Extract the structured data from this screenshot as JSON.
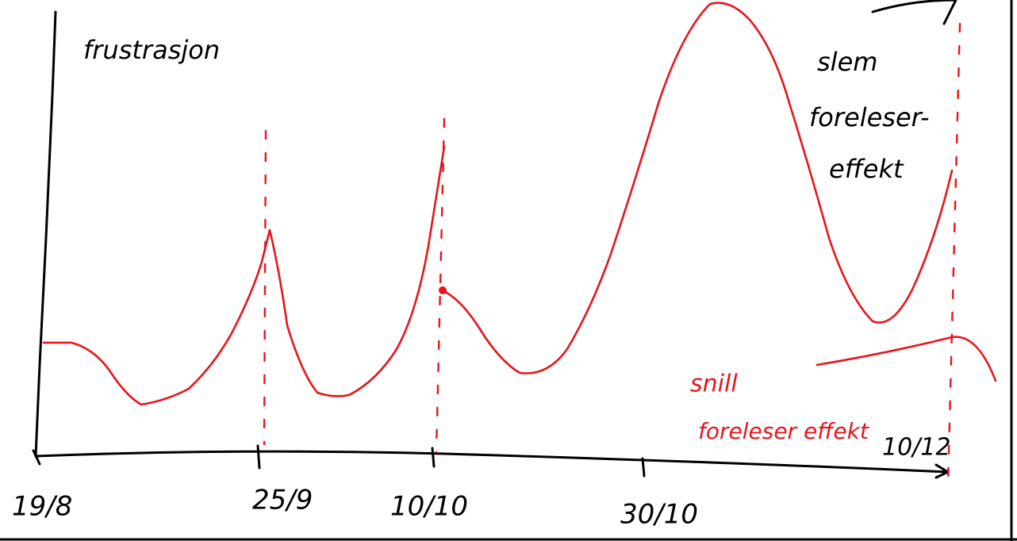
{
  "y_axis_label": "frustrasjon",
  "x_labels": [
    "19/8",
    "25/9",
    "10/10",
    "30/10",
    "10/12"
  ],
  "annotations": {
    "bad": [
      "slem",
      "foreleser-",
      "effekt"
    ],
    "good": [
      "snill",
      "foreleser effekt"
    ]
  }
}
